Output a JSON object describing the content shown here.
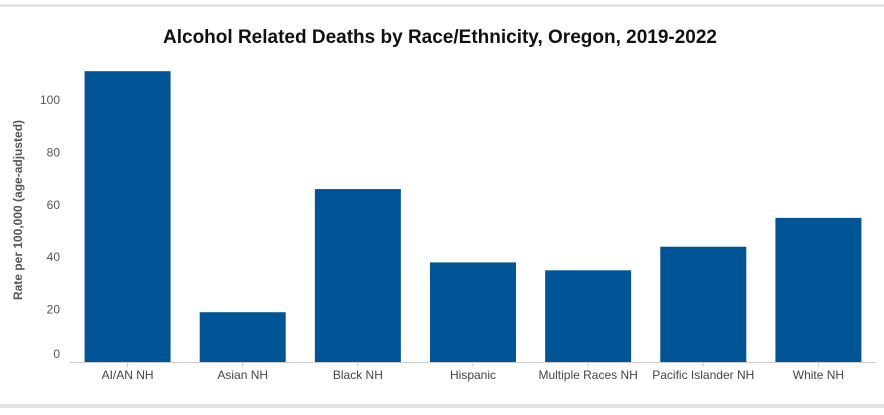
{
  "colors": {
    "bar": "#005596",
    "border": "#e3e3e3",
    "axis": "#cccccc"
  },
  "chart_data": {
    "type": "bar",
    "title": "Alcohol Related Deaths by Race/Ethnicity, Oregon, 2019-2022",
    "xlabel": "",
    "ylabel": "Rate per 100,000 (age-adjusted)",
    "categories": [
      "AI/AN NH",
      "Asian NH",
      "Black NH",
      "Hispanic",
      "Multiple Races NH",
      "Pacific Islander NH",
      "White NH"
    ],
    "values": [
      111,
      19,
      66,
      38,
      35,
      44,
      55
    ],
    "yticks": [
      0,
      20,
      40,
      60,
      80,
      100
    ],
    "ylim": [
      0,
      112
    ],
    "grid": false,
    "legend": "none"
  }
}
